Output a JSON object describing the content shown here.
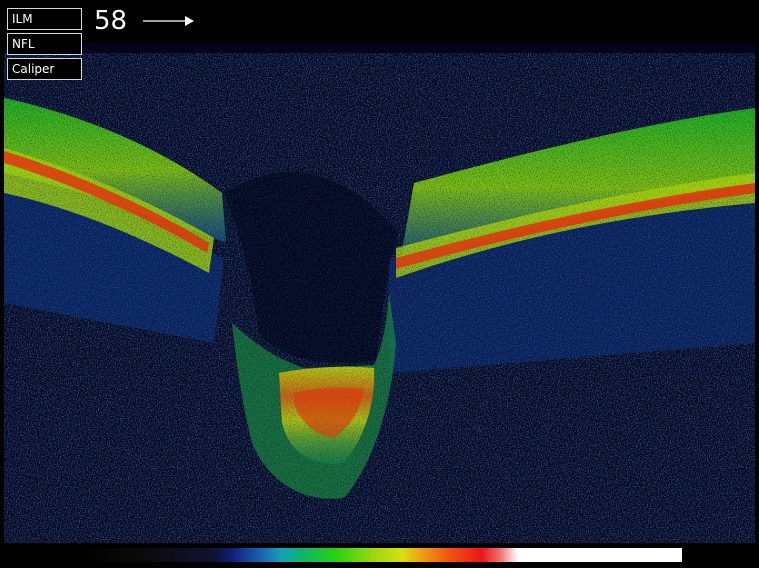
{
  "overlay_buttons": {
    "ilm_label": "ILM",
    "nfl_label": "NFL",
    "caliper_label": "Caliper"
  },
  "scan": {
    "frame_number": "58",
    "direction_icon": "right-arrow-icon"
  },
  "colors": {
    "background": "#000000",
    "button_border": "#d8d8d8",
    "low_signal": "#1020a0",
    "mid_signal": "#20c020",
    "high_signal": "#e82010",
    "max_signal": "#ffffff"
  },
  "legend": {
    "type": "color-scale",
    "stops": [
      "black",
      "blue",
      "cyan",
      "green",
      "yellow",
      "orange",
      "red",
      "pink",
      "white"
    ]
  }
}
